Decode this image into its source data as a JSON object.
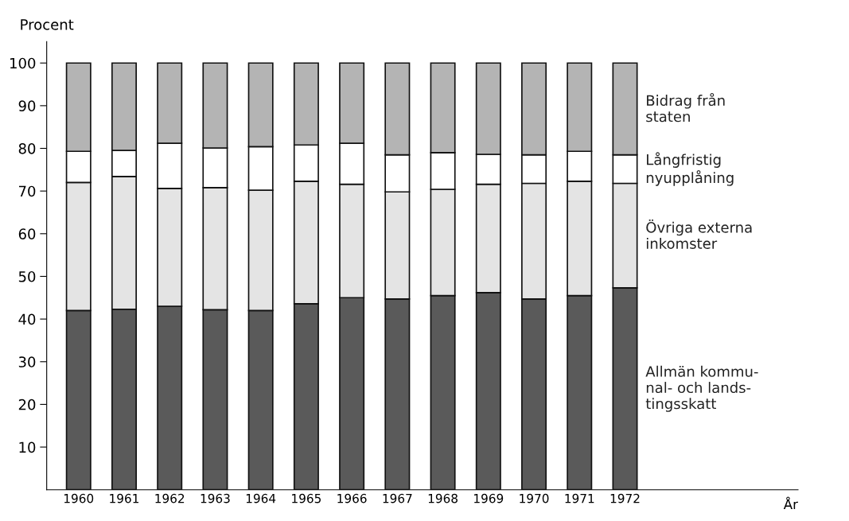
{
  "chart_data": {
    "type": "bar",
    "stacked": true,
    "ylabel": "Procent",
    "annotations": [
      "År"
    ],
    "categories": [
      "1960",
      "1961",
      "1962",
      "1963",
      "1964",
      "1965",
      "1966",
      "1967",
      "1968",
      "1969",
      "1970",
      "1971",
      "1972"
    ],
    "series": [
      {
        "name": "Allmän kommu-\nnal- och lands-\ntingsskatt",
        "color": "#5a5a5a",
        "values": [
          42,
          42.3,
          43,
          42.2,
          42,
          43.6,
          45,
          44.7,
          45.5,
          46.2,
          44.7,
          45.5,
          47.3
        ]
      },
      {
        "name": "Övriga externa\ninkomster",
        "color": "#e4e4e4",
        "values": [
          30,
          31.1,
          27.6,
          28.6,
          28.2,
          28.7,
          26.6,
          25.1,
          24.9,
          25.4,
          27.1,
          26.8,
          24.5
        ]
      },
      {
        "name": "Långfristig\nnyupplåning",
        "color": "#ffffff",
        "values": [
          7.3,
          6.1,
          10.6,
          9.3,
          10.2,
          8.5,
          9.6,
          8.7,
          8.6,
          7,
          6.7,
          7,
          6.7
        ]
      },
      {
        "name": "Bidrag från\nstaten",
        "color": "#b4b4b4",
        "values": [
          20.7,
          20.5,
          18.8,
          19.9,
          19.6,
          19.2,
          18.8,
          21.5,
          21,
          21.4,
          21.5,
          20.7,
          21.5
        ]
      }
    ],
    "ylim": [
      0,
      105
    ],
    "yticks": [
      10,
      20,
      30,
      40,
      50,
      60,
      70,
      80,
      90,
      100
    ],
    "grid": false,
    "legend": false
  }
}
